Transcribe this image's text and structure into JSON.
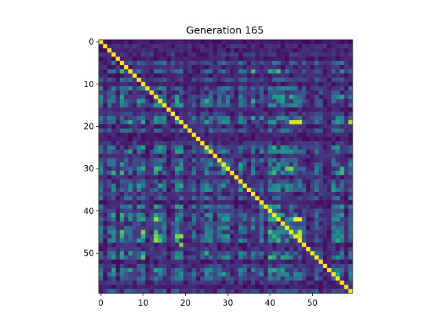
{
  "chart_data": {
    "type": "heatmap",
    "title": "Generation 165",
    "xlabel": "",
    "ylabel": "",
    "size": 60,
    "xlim": [
      -0.5,
      59.5
    ],
    "ylim": [
      59.5,
      -0.5
    ],
    "x_ticks": [
      0,
      10,
      20,
      30,
      40,
      50
    ],
    "y_ticks": [
      0,
      10,
      20,
      30,
      40,
      50
    ],
    "colormap": "viridis",
    "value_range": [
      0,
      1
    ],
    "diagonal_value": 1.0,
    "grid": false,
    "legend": "none",
    "colormap_stops": [
      "#440154",
      "#482878",
      "#3e4989",
      "#31688e",
      "#26828e",
      "#1f9e89",
      "#35b779",
      "#6ece58",
      "#b5de2b",
      "#fde725"
    ],
    "row_strength": [
      0.08,
      0.15,
      0.12,
      0.18,
      0.1,
      0.35,
      0.14,
      0.55,
      0.12,
      0.3,
      0.1,
      0.4,
      0.25,
      0.6,
      0.65,
      0.45,
      0.12,
      0.2,
      0.5,
      0.7,
      0.15,
      0.35,
      0.12,
      0.1,
      0.2,
      0.55,
      0.5,
      0.15,
      0.35,
      0.45,
      0.6,
      0.55,
      0.15,
      0.3,
      0.5,
      0.45,
      0.2,
      0.35,
      0.12,
      0.5,
      0.25,
      0.55,
      0.7,
      0.3,
      0.4,
      0.75,
      0.8,
      0.72,
      0.15,
      0.18,
      0.5,
      0.6,
      0.12,
      0.25,
      0.5,
      0.45,
      0.35,
      0.2,
      0.1,
      0.3
    ],
    "col_strength": [
      0.4,
      0.15,
      0.35,
      0.55,
      0.15,
      0.6,
      0.3,
      0.5,
      0.2,
      0.45,
      0.65,
      0.15,
      0.2,
      0.7,
      0.6,
      0.4,
      0.12,
      0.25,
      0.65,
      0.5,
      0.15,
      0.2,
      0.35,
      0.15,
      0.3,
      0.55,
      0.4,
      0.2,
      0.35,
      0.55,
      0.45,
      0.2,
      0.15,
      0.45,
      0.3,
      0.15,
      0.55,
      0.2,
      0.4,
      0.15,
      0.65,
      0.6,
      0.55,
      0.5,
      0.45,
      0.5,
      0.4,
      0.35,
      0.3,
      0.15,
      0.2,
      0.35,
      0.25,
      0.15,
      0.12,
      0.45,
      0.5,
      0.55,
      0.15,
      0.4
    ],
    "highlight_cells": [
      [
        19,
        45,
        0.95
      ],
      [
        19,
        46,
        0.95
      ],
      [
        19,
        47,
        0.95
      ],
      [
        19,
        59,
        0.9
      ],
      [
        42,
        46,
        1.0
      ],
      [
        42,
        47,
        1.0
      ],
      [
        45,
        47,
        0.9
      ],
      [
        46,
        47,
        0.9
      ],
      [
        46,
        19,
        0.85
      ],
      [
        48,
        19,
        0.8
      ],
      [
        30,
        44,
        0.75
      ],
      [
        30,
        45,
        0.8
      ]
    ]
  }
}
